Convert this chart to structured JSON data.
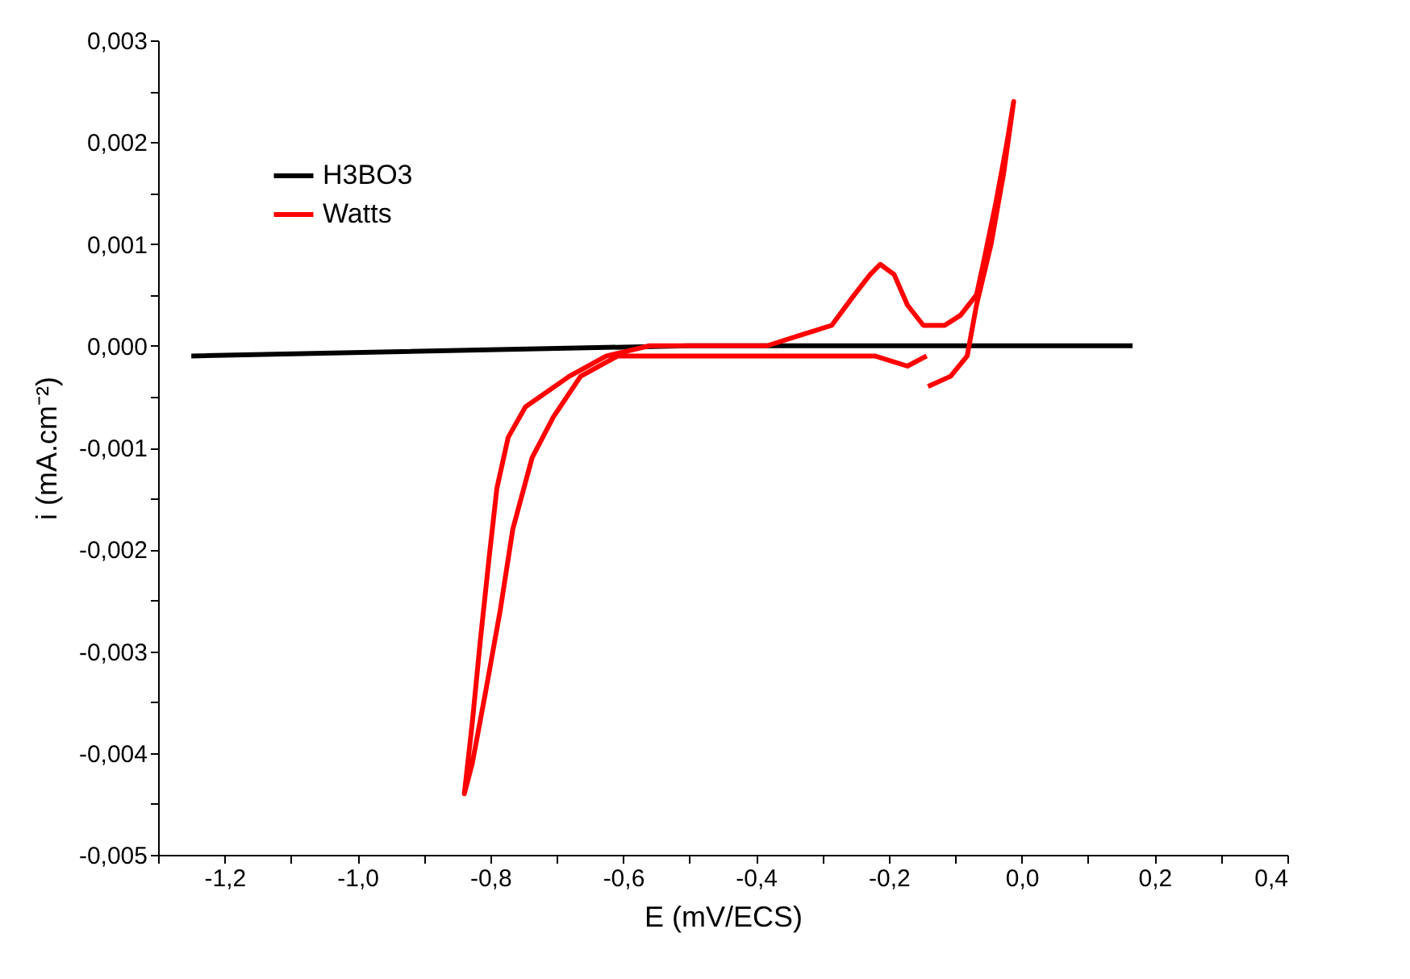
{
  "chart_data": {
    "type": "line",
    "xlabel": "E (mV/ECS)",
    "ylabel": "i (mA.cm⁻²)",
    "xlim": [
      -1.3,
      0.4
    ],
    "ylim": [
      -0.005,
      0.003
    ],
    "xticks": [
      {
        "value": -1.3,
        "label": null
      },
      {
        "value": -1.2,
        "label": "-1,2"
      },
      {
        "value": -1.1,
        "label": null
      },
      {
        "value": -1.0,
        "label": "-1,0"
      },
      {
        "value": -0.9,
        "label": null
      },
      {
        "value": -0.8,
        "label": "-0,8"
      },
      {
        "value": -0.7,
        "label": null
      },
      {
        "value": -0.6,
        "label": "-0,6"
      },
      {
        "value": -0.5,
        "label": null
      },
      {
        "value": -0.4,
        "label": "-0,4"
      },
      {
        "value": -0.3,
        "label": null
      },
      {
        "value": -0.2,
        "label": "-0,2"
      },
      {
        "value": -0.1,
        "label": null
      },
      {
        "value": 0.0,
        "label": "0,0"
      },
      {
        "value": 0.1,
        "label": null
      },
      {
        "value": 0.2,
        "label": "0,2"
      },
      {
        "value": 0.3,
        "label": null
      },
      {
        "value": 0.4,
        "label": "0,4"
      }
    ],
    "yticks": [
      {
        "value": -0.005,
        "label": "-0,005"
      },
      {
        "value": -0.0045,
        "label": null
      },
      {
        "value": -0.004,
        "label": "-0,004"
      },
      {
        "value": -0.0035,
        "label": null
      },
      {
        "value": -0.003,
        "label": "-0,003"
      },
      {
        "value": -0.0025,
        "label": null
      },
      {
        "value": -0.002,
        "label": "-0,002"
      },
      {
        "value": -0.0015,
        "label": null
      },
      {
        "value": -0.001,
        "label": "-0,001"
      },
      {
        "value": -0.0005,
        "label": null
      },
      {
        "value": 0.0,
        "label": "0,000"
      },
      {
        "value": 0.0005,
        "label": null
      },
      {
        "value": 0.001,
        "label": "0,001"
      },
      {
        "value": 0.0015,
        "label": null
      },
      {
        "value": 0.002,
        "label": "0,002"
      },
      {
        "value": 0.0025,
        "label": null
      },
      {
        "value": 0.003,
        "label": "0,003"
      }
    ],
    "grid": false,
    "legend": "top left",
    "marker": "none",
    "line_style": "solid",
    "series": [
      {
        "name": "H3BO3",
        "color": "#000000",
        "x": [
          -1.25,
          -0.5,
          0.167
        ],
        "values": [
          -0.0001,
          0.0,
          0.0
        ]
      },
      {
        "name": "Watts",
        "color": "#ff0000",
        "x": [
          -0.143,
          -0.172,
          -0.221,
          -0.301,
          -0.383,
          -0.463,
          -0.543,
          -0.56,
          -0.608,
          -0.664,
          -0.705,
          -0.737,
          -0.766,
          -0.785,
          -0.807,
          -0.827,
          -0.839,
          -0.827,
          -0.815,
          -0.802,
          -0.79,
          -0.773,
          -0.747,
          -0.681,
          -0.625,
          -0.56,
          -0.463,
          -0.383,
          -0.335,
          -0.286,
          -0.252,
          -0.228,
          -0.213,
          -0.192,
          -0.172,
          -0.148,
          -0.116,
          -0.092,
          -0.068,
          -0.058,
          -0.039,
          -0.022,
          -0.012,
          -0.027,
          -0.046,
          -0.068,
          -0.082,
          -0.107,
          -0.141
        ],
        "values": [
          -0.0001,
          -0.0002,
          -0.0001,
          -0.0001,
          -0.0001,
          -0.0001,
          -0.0001,
          -0.0001,
          -0.0001,
          -0.0003,
          -0.0007,
          -0.0011,
          -0.0018,
          -0.0026,
          -0.0034,
          -0.0041,
          -0.0044,
          -0.0037,
          -0.0029,
          -0.0021,
          -0.0014,
          -0.0009,
          -0.0006,
          -0.0003,
          -0.0001,
          0.0,
          0.0,
          0.0,
          0.0001,
          0.0002,
          0.0005,
          0.0007,
          0.0008,
          0.0007,
          0.0004,
          0.0002,
          0.0002,
          0.0003,
          0.0005,
          0.0008,
          0.0014,
          0.002,
          0.0024,
          0.0017,
          0.001,
          0.0004,
          -0.0001,
          -0.0003,
          -0.0004
        ]
      }
    ]
  }
}
